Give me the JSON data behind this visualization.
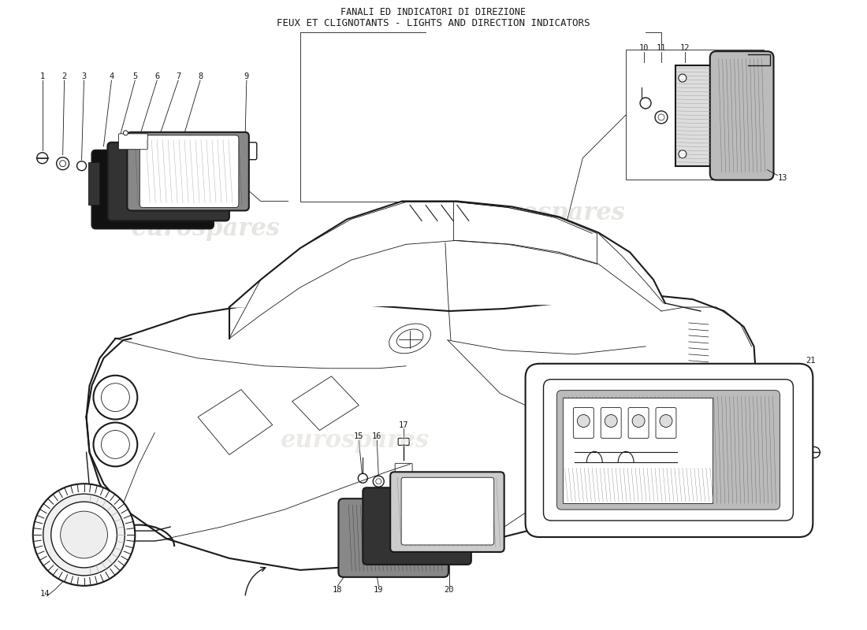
{
  "title_line1": "FANALI ED INDICATORI DI DIREZIONE",
  "title_line2": "FEUX ET CLIGNOTANTS - LIGHTS AND DIRECTION INDICATORS",
  "bg_color": "#ffffff",
  "line_color": "#1a1a1a",
  "watermark_text": "eurospares",
  "watermark_color": "#d0ccc5",
  "fig_width": 11.0,
  "fig_height": 8.0,
  "dpi": 100
}
